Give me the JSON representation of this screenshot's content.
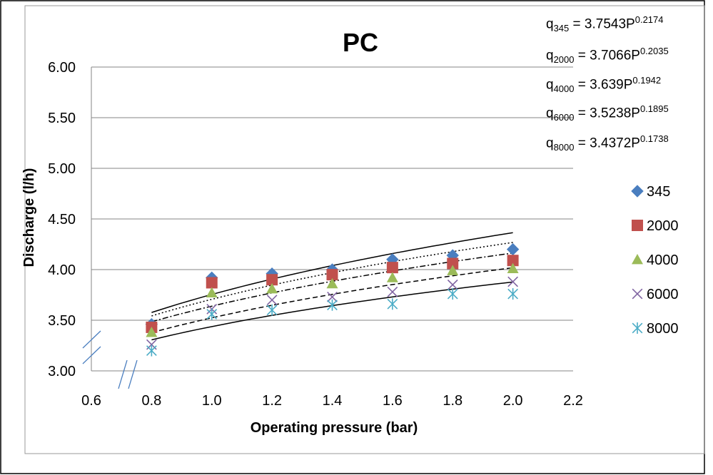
{
  "chart_data": {
    "type": "scatter",
    "title": "PC",
    "xlabel": "Operating pressure (bar)",
    "ylabel": "Discharge (l/h)",
    "xlim": [
      0.6,
      2.2
    ],
    "ylim": [
      3.0,
      6.0
    ],
    "xticks": [
      "0.6",
      "0.8",
      "1.0",
      "1.2",
      "1.4",
      "1.6",
      "1.8",
      "2.0",
      "2.2"
    ],
    "yticks": [
      "3.00",
      "3.50",
      "4.00",
      "4.50",
      "5.00",
      "5.50",
      "6.00"
    ],
    "grid": "horizontal",
    "legend_position": "right",
    "axis_breaks": true,
    "x": [
      0.8,
      1.0,
      1.2,
      1.4,
      1.6,
      1.8,
      2.0
    ],
    "series": [
      {
        "name": "345",
        "marker": "diamond",
        "color": "#4a7ebf",
        "values": [
          3.46,
          3.92,
          3.96,
          4.0,
          4.1,
          4.14,
          4.2
        ],
        "trend": {
          "coef": 3.7543,
          "exp": 0.2174,
          "style": "solid"
        }
      },
      {
        "name": "2000",
        "marker": "square",
        "color": "#c0504d",
        "values": [
          3.43,
          3.87,
          3.9,
          3.95,
          4.02,
          4.06,
          4.09
        ],
        "trend": {
          "coef": 3.7066,
          "exp": 0.2035,
          "style": "dotted"
        }
      },
      {
        "name": "4000",
        "marker": "triangle",
        "color": "#9bbb59",
        "values": [
          3.38,
          3.77,
          3.81,
          3.86,
          3.92,
          3.99,
          4.01
        ],
        "trend": {
          "coef": 3.639,
          "exp": 0.1942,
          "style": "dash-dot"
        }
      },
      {
        "name": "6000",
        "marker": "x",
        "color": "#8064a2",
        "values": [
          3.26,
          3.61,
          3.7,
          3.73,
          3.78,
          3.85,
          3.88
        ],
        "trend": {
          "coef": 3.5238,
          "exp": 0.1895,
          "style": "dashed"
        }
      },
      {
        "name": "8000",
        "marker": "star",
        "color": "#4bacc6",
        "values": [
          3.2,
          3.56,
          3.6,
          3.65,
          3.66,
          3.76,
          3.76
        ],
        "trend": {
          "coef": 3.4372,
          "exp": 0.1738,
          "style": "solid"
        }
      }
    ],
    "equations": [
      {
        "lhs": "q",
        "sub": "345",
        "rhs": " = 3.7543P",
        "sup": "0.2174"
      },
      {
        "lhs": "q",
        "sub": "2000",
        "rhs": " = 3.7066P",
        "sup": "0.2035"
      },
      {
        "lhs": "q",
        "sub": "4000",
        "rhs": " = 3.639P",
        "sup": "0.1942"
      },
      {
        "lhs": "q",
        "sub": "6000",
        "rhs": " = 3.5238P",
        "sup": "0.1895"
      },
      {
        "lhs": "q",
        "sub": "8000",
        "rhs": " = 3.4372P",
        "sup": "0.1738"
      }
    ]
  }
}
